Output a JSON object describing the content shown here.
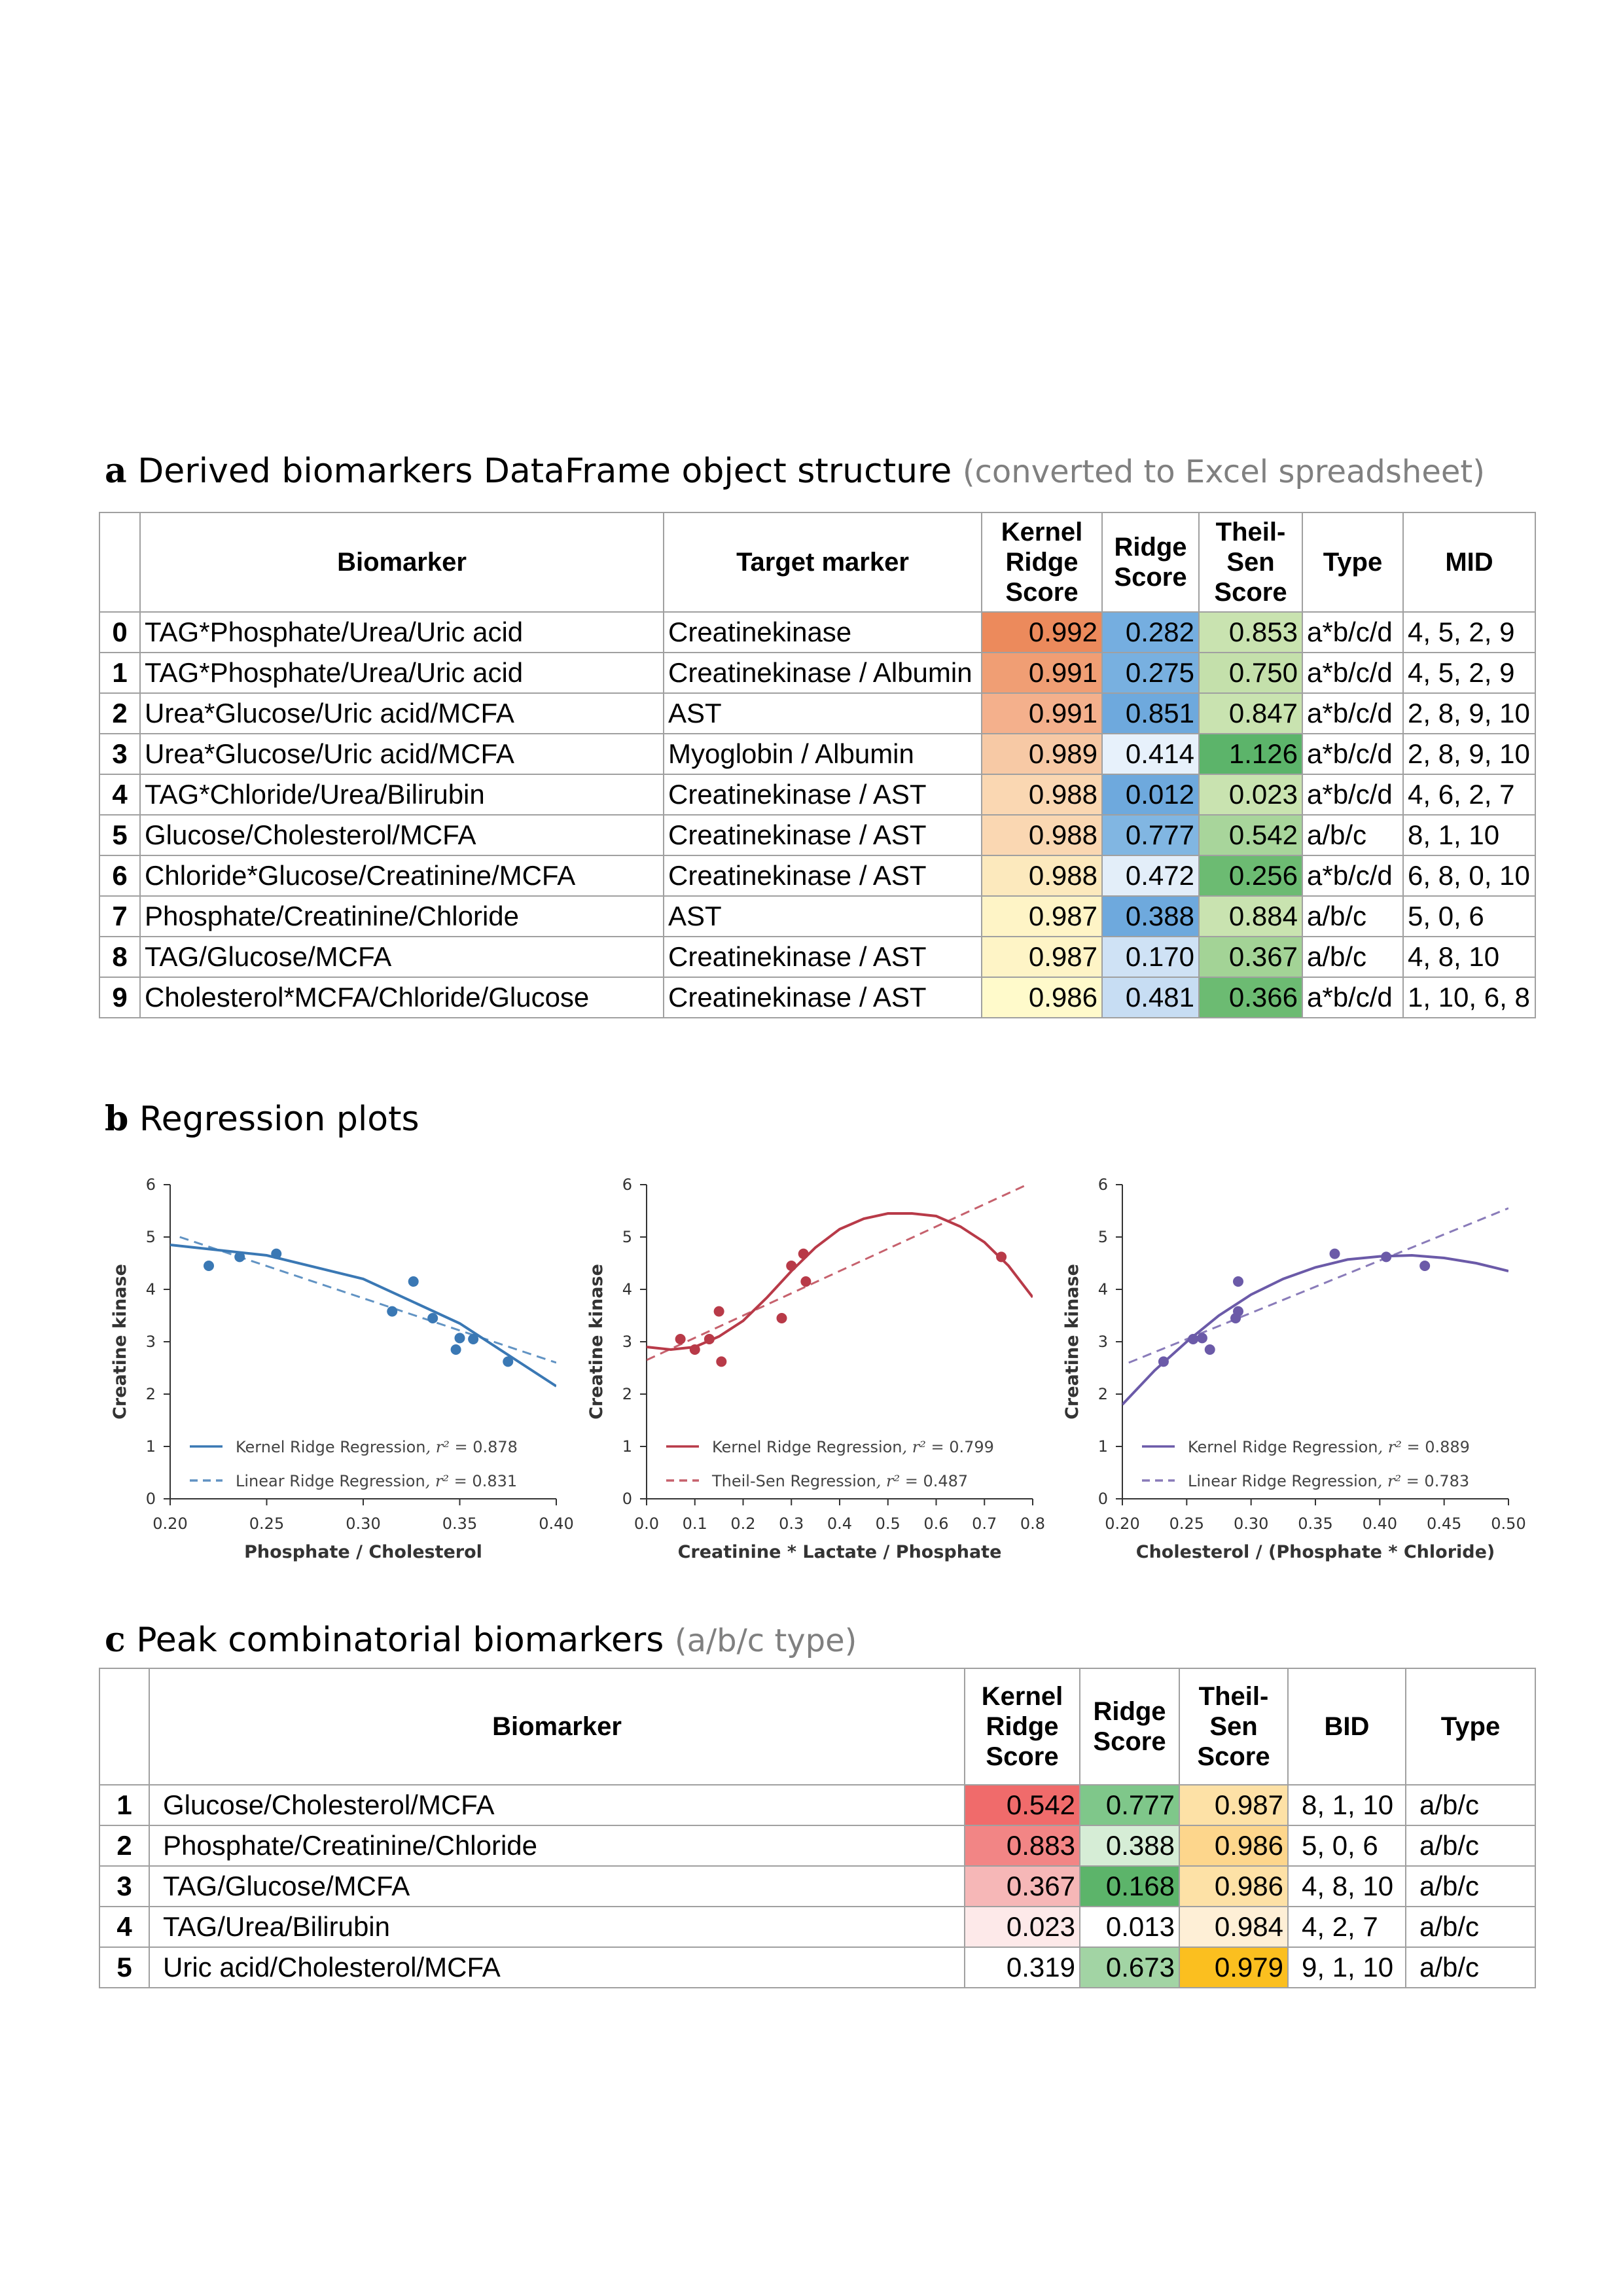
{
  "section_a": {
    "letter": "a",
    "title": "Derived biomarkers DataFrame object structure",
    "subtitle": "(converted to Excel spreadsheet)",
    "headers": {
      "biomarker": "Biomarker",
      "target": "Target marker",
      "kernel": [
        "Kernel",
        "Ridge",
        "Score"
      ],
      "ridge": [
        "Ridge",
        "Score"
      ],
      "theil": [
        "Theil-",
        "Sen",
        "Score"
      ],
      "type": "Type",
      "mid": "MID"
    },
    "rows": [
      {
        "idx": "0",
        "biomarker": "TAG*Phosphate/Urea/Uric acid",
        "target": "Creatinekinase",
        "kernel": "0.992",
        "ridge": "0.282",
        "theil": "0.853",
        "type": "a*b/c/d",
        "mid": "4, 5, 2, 9"
      },
      {
        "idx": "1",
        "biomarker": "TAG*Phosphate/Urea/Uric acid",
        "target": "Creatinekinase / Albumin",
        "kernel": "0.991",
        "ridge": "0.275",
        "theil": "0.750",
        "type": "a*b/c/d",
        "mid": "4, 5, 2, 9"
      },
      {
        "idx": "2",
        "biomarker": "Urea*Glucose/Uric acid/MCFA",
        "target": "AST",
        "kernel": "0.991",
        "ridge": "0.851",
        "theil": "0.847",
        "type": "a*b/c/d",
        "mid": "2, 8, 9, 10"
      },
      {
        "idx": "3",
        "biomarker": "Urea*Glucose/Uric acid/MCFA",
        "target": "Myoglobin / Albumin",
        "kernel": "0.989",
        "ridge": "0.414",
        "theil": "1.126",
        "type": "a*b/c/d",
        "mid": "2, 8, 9, 10"
      },
      {
        "idx": "4",
        "biomarker": "TAG*Chloride/Urea/Bilirubin",
        "target": "Creatinekinase / AST",
        "kernel": "0.988",
        "ridge": "0.012",
        "theil": "0.023",
        "type": "a*b/c/d",
        "mid": "4, 6, 2, 7"
      },
      {
        "idx": "5",
        "biomarker": "Glucose/Cholesterol/MCFA",
        "target": "Creatinekinase / AST",
        "kernel": "0.988",
        "ridge": "0.777",
        "theil": "0.542",
        "type": "a/b/c",
        "mid": "8, 1, 10"
      },
      {
        "idx": "6",
        "biomarker": "Chloride*Glucose/Creatinine/MCFA",
        "target": "Creatinekinase / AST",
        "kernel": "0.988",
        "ridge": "0.472",
        "theil": "0.256",
        "type": "a*b/c/d",
        "mid": "6, 8, 0, 10"
      },
      {
        "idx": "7",
        "biomarker": "Phosphate/Creatinine/Chloride",
        "target": "AST",
        "kernel": "0.987",
        "ridge": "0.388",
        "theil": "0.884",
        "type": "a/b/c",
        "mid": "5, 0, 6"
      },
      {
        "idx": "8",
        "biomarker": "TAG/Glucose/MCFA",
        "target": "Creatinekinase / AST",
        "kernel": "0.987",
        "ridge": "0.170",
        "theil": "0.367",
        "type": "a/b/c",
        "mid": "4, 8, 10"
      },
      {
        "idx": "9",
        "biomarker": "Cholesterol*MCFA/Chloride/Glucose",
        "target": "Creatinekinase / AST",
        "kernel": "0.986",
        "ridge": "0.481",
        "theil": "0.366",
        "type": "a*b/c/d",
        "mid": "1, 10, 6, 8"
      }
    ],
    "colors": {
      "kernel": [
        "#ec8a5c",
        "#f09e74",
        "#f4b08c",
        "#f7c9a5",
        "#fad7b2",
        "#fad7b2",
        "#fce9bd",
        "#fef4c6",
        "#fef4c6",
        "#fffacb"
      ],
      "ridge": [
        "#75aee0",
        "#78b0e0",
        "#6ea9dd",
        "#e7f1fb",
        "#6ea9dd",
        "#81b6e2",
        "#e3eef9",
        "#6ea9dd",
        "#cfe2f5",
        "#c7ddf3"
      ],
      "theil": [
        "#c9e3b0",
        "#c4e0ab",
        "#c9e3b0",
        "#5cb46a",
        "#c9e3b0",
        "#a8d59b",
        "#6cbb72",
        "#c9e3b0",
        "#a3d396",
        "#6cbb72"
      ]
    }
  },
  "section_b": {
    "letter": "b",
    "title": "Regression plots"
  },
  "chart_data": [
    {
      "type": "scatter",
      "xlabel": "Phosphate / Cholesterol",
      "ylabel": "Creatine kinase",
      "xlim": [
        0.2,
        0.4
      ],
      "ylim": [
        0,
        6
      ],
      "xticks": [
        "0.20",
        "0.25",
        "0.30",
        "0.35",
        "0.40"
      ],
      "yticks": [
        "0",
        "1",
        "2",
        "3",
        "4",
        "5",
        "6"
      ],
      "color": "#3a78b4",
      "points": [
        [
          0.22,
          4.45
        ],
        [
          0.236,
          4.62
        ],
        [
          0.255,
          4.68
        ],
        [
          0.315,
          3.58
        ],
        [
          0.326,
          4.15
        ],
        [
          0.336,
          3.45
        ],
        [
          0.348,
          2.85
        ],
        [
          0.35,
          3.07
        ],
        [
          0.357,
          3.05
        ],
        [
          0.375,
          2.62
        ]
      ],
      "series": [
        {
          "name": "Kernel Ridge Regression",
          "r2": "0.878",
          "style": "solid",
          "x": [
            0.2,
            0.25,
            0.3,
            0.35,
            0.4
          ],
          "y": [
            4.85,
            4.65,
            4.2,
            3.35,
            2.15
          ]
        },
        {
          "name": "Linear Ridge Regression",
          "r2": "0.831",
          "style": "dashed",
          "x": [
            0.205,
            0.4
          ],
          "y": [
            5.0,
            2.6
          ]
        }
      ],
      "legend": "bottom-left"
    },
    {
      "type": "scatter",
      "xlabel": "Creatinine * Lactate / Phosphate",
      "ylabel": "Creatine kinase",
      "xlim": [
        0.0,
        0.8
      ],
      "ylim": [
        0,
        6
      ],
      "xticks": [
        "0.0",
        "0.1",
        "0.2",
        "0.3",
        "0.4",
        "0.5",
        "0.6",
        "0.7",
        "0.8"
      ],
      "yticks": [
        "0",
        "1",
        "2",
        "3",
        "4",
        "5",
        "6"
      ],
      "color": "#b83a48",
      "points": [
        [
          0.07,
          3.05
        ],
        [
          0.1,
          2.85
        ],
        [
          0.13,
          3.05
        ],
        [
          0.15,
          3.58
        ],
        [
          0.155,
          2.62
        ],
        [
          0.28,
          3.45
        ],
        [
          0.3,
          4.45
        ],
        [
          0.325,
          4.68
        ],
        [
          0.33,
          4.15
        ],
        [
          0.735,
          4.62
        ]
      ],
      "series": [
        {
          "name": "Kernel Ridge Regression",
          "r2": "0.799",
          "style": "solid",
          "x": [
            0.0,
            0.05,
            0.1,
            0.15,
            0.2,
            0.25,
            0.3,
            0.35,
            0.4,
            0.45,
            0.5,
            0.55,
            0.6,
            0.65,
            0.7,
            0.75,
            0.8
          ],
          "y": [
            2.9,
            2.85,
            2.9,
            3.1,
            3.4,
            3.85,
            4.35,
            4.8,
            5.15,
            5.35,
            5.45,
            5.45,
            5.4,
            5.2,
            4.9,
            4.45,
            3.85
          ]
        },
        {
          "name": "Theil-Sen Regression",
          "r2": "0.487",
          "style": "dashed",
          "x": [
            0.0,
            0.8
          ],
          "y": [
            2.65,
            6.05
          ]
        }
      ],
      "legend": "bottom-left"
    },
    {
      "type": "scatter",
      "xlabel": "Cholesterol / (Phosphate * Chloride)",
      "ylabel": "Creatine kinase",
      "xlim": [
        0.2,
        0.5
      ],
      "ylim": [
        0,
        6
      ],
      "xticks": [
        "0.20",
        "0.25",
        "0.30",
        "0.35",
        "0.40",
        "0.45",
        "0.50"
      ],
      "yticks": [
        "0",
        "1",
        "2",
        "3",
        "4",
        "5",
        "6"
      ],
      "color": "#6b5aa8",
      "points": [
        [
          0.232,
          2.62
        ],
        [
          0.255,
          3.05
        ],
        [
          0.262,
          3.07
        ],
        [
          0.268,
          2.85
        ],
        [
          0.288,
          3.45
        ],
        [
          0.29,
          3.58
        ],
        [
          0.29,
          4.15
        ],
        [
          0.365,
          4.68
        ],
        [
          0.405,
          4.62
        ],
        [
          0.435,
          4.45
        ]
      ],
      "series": [
        {
          "name": "Kernel Ridge Regression",
          "r2": "0.889",
          "style": "solid",
          "x": [
            0.2,
            0.225,
            0.25,
            0.275,
            0.3,
            0.325,
            0.35,
            0.375,
            0.4,
            0.425,
            0.45,
            0.475,
            0.5
          ],
          "y": [
            1.8,
            2.45,
            3.0,
            3.5,
            3.9,
            4.2,
            4.42,
            4.57,
            4.63,
            4.65,
            4.6,
            4.5,
            4.35
          ]
        },
        {
          "name": "Linear Ridge Regression",
          "r2": "0.783",
          "style": "dashed",
          "x": [
            0.205,
            0.5
          ],
          "y": [
            2.6,
            5.55
          ]
        }
      ],
      "legend": "bottom-left"
    }
  ],
  "section_c": {
    "letter": "c",
    "title": "Peak combinatorial biomarkers",
    "subtitle": "(a/b/c type)",
    "headers": {
      "biomarker": "Biomarker",
      "kernel": [
        "Kernel",
        "Ridge",
        "Score"
      ],
      "ridge": [
        "Ridge",
        "Score"
      ],
      "theil": [
        "Theil-",
        "Sen",
        "Score"
      ],
      "bid": "BID",
      "type": "Type"
    },
    "rows": [
      {
        "idx": "1",
        "biomarker": "Glucose/Cholesterol/MCFA",
        "kernel": "0.542",
        "ridge": "0.777",
        "theil": "0.987",
        "bid": "8, 1, 10",
        "type": "a/b/c"
      },
      {
        "idx": "2",
        "biomarker": "Phosphate/Creatinine/Chloride",
        "kernel": "0.883",
        "ridge": "0.388",
        "theil": "0.986",
        "bid": "5, 0, 6",
        "type": "a/b/c"
      },
      {
        "idx": "3",
        "biomarker": "TAG/Glucose/MCFA",
        "kernel": "0.367",
        "ridge": "0.168",
        "theil": "0.986",
        "bid": "4, 8, 10",
        "type": "a/b/c"
      },
      {
        "idx": "4",
        "biomarker": "TAG/Urea/Bilirubin",
        "kernel": "0.023",
        "ridge": "0.013",
        "theil": "0.984",
        "bid": "4, 2, 7",
        "type": "a/b/c"
      },
      {
        "idx": "5",
        "biomarker": "Uric acid/Cholesterol/MCFA",
        "kernel": "0.319",
        "ridge": "0.673",
        "theil": "0.979",
        "bid": "9, 1, 10",
        "type": "a/b/c"
      }
    ],
    "colors": {
      "kernel": [
        "#f06b6b",
        "#f28585",
        "#f6b7b7",
        "#fde9e9",
        "#ffffff"
      ],
      "ridge": [
        "#7fc78a",
        "#d6edd6",
        "#5cb46a",
        "#ffffff",
        "#a2d4a4"
      ],
      "theil": [
        "#fde1a6",
        "#fdd68c",
        "#fde1a6",
        "#feefd6",
        "#fbbf1f"
      ]
    }
  }
}
